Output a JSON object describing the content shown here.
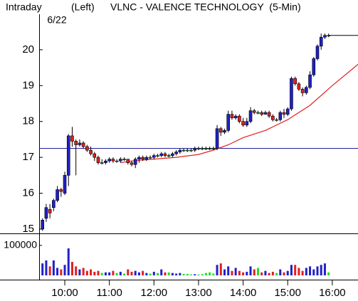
{
  "chart_data": {
    "type": "candlestick",
    "label": "Intraday",
    "date": "6/22",
    "axis_side": "(Left)",
    "title": "VLNC - VALENCE TECHNOLOGY  (5-Min)",
    "x": [
      570,
      575,
      580,
      585,
      590,
      595,
      600,
      605,
      610,
      615,
      620,
      625,
      630,
      635,
      640,
      645,
      650,
      655,
      660,
      665,
      670,
      675,
      680,
      685,
      690,
      695,
      700,
      705,
      710,
      715,
      720,
      725,
      730,
      735,
      740,
      745,
      750,
      755,
      760,
      765,
      770,
      775,
      780,
      785,
      790,
      795,
      800,
      805,
      810,
      815,
      820,
      825,
      830,
      835,
      840,
      845,
      850,
      855,
      860,
      865,
      870,
      875,
      880,
      885,
      890,
      895,
      900,
      905,
      910,
      915,
      920,
      925,
      930,
      935,
      940,
      945,
      950,
      955
    ],
    "open": [
      15.0,
      15.3,
      15.55,
      15.6,
      15.8,
      16.1,
      16.0,
      16.5,
      17.6,
      17.45,
      17.35,
      17.4,
      17.3,
      17.2,
      17.1,
      17.0,
      16.85,
      16.85,
      16.9,
      16.95,
      16.9,
      16.9,
      16.95,
      16.95,
      16.85,
      16.8,
      16.95,
      17.0,
      16.95,
      17.0,
      17.0,
      17.05,
      17.05,
      17.1,
      17.05,
      17.05,
      17.1,
      17.15,
      17.2,
      17.2,
      17.2,
      17.2,
      17.25,
      17.25,
      17.25,
      17.25,
      17.25,
      17.25,
      17.8,
      17.7,
      17.75,
      18.2,
      18.1,
      18.15,
      18.0,
      17.9,
      18.0,
      18.3,
      18.25,
      18.25,
      18.2,
      18.25,
      18.15,
      18.05,
      18.05,
      18.25,
      18.2,
      18.35,
      19.2,
      19.05,
      18.9,
      18.8,
      18.95,
      19.3,
      19.75,
      20.1,
      20.35,
      20.4
    ],
    "high": [
      15.3,
      15.7,
      15.7,
      15.85,
      16.2,
      16.15,
      16.6,
      17.65,
      17.85,
      17.5,
      17.5,
      17.45,
      17.35,
      17.3,
      17.15,
      17.05,
      16.95,
      16.95,
      17.0,
      17.0,
      16.95,
      17.0,
      17.0,
      16.95,
      16.9,
      17.0,
      17.05,
      17.05,
      17.05,
      17.05,
      17.1,
      17.1,
      17.15,
      17.15,
      17.1,
      17.15,
      17.2,
      17.25,
      17.25,
      17.25,
      17.25,
      17.3,
      17.3,
      17.3,
      17.3,
      17.3,
      17.3,
      17.9,
      17.85,
      17.8,
      18.3,
      18.3,
      18.2,
      18.2,
      18.1,
      18.1,
      18.4,
      18.35,
      18.3,
      18.3,
      18.3,
      18.3,
      18.2,
      18.1,
      18.3,
      18.35,
      18.4,
      19.25,
      19.25,
      19.1,
      18.95,
      19.0,
      19.4,
      19.8,
      20.15,
      20.45,
      20.45,
      20.45
    ],
    "low": [
      14.95,
      15.2,
      15.3,
      15.5,
      15.75,
      15.9,
      15.95,
      16.2,
      17.3,
      16.5,
      17.3,
      17.25,
      17.15,
      17.05,
      16.9,
      16.8,
      16.8,
      16.8,
      16.85,
      16.85,
      16.85,
      16.85,
      16.9,
      16.8,
      16.75,
      16.7,
      16.85,
      16.9,
      16.9,
      16.95,
      16.95,
      17.0,
      17.0,
      17.0,
      17.0,
      17.0,
      17.05,
      17.1,
      17.15,
      17.15,
      17.15,
      17.15,
      17.2,
      17.2,
      17.2,
      17.2,
      17.2,
      17.2,
      17.6,
      17.65,
      17.7,
      18.05,
      18.05,
      17.95,
      17.85,
      17.85,
      17.95,
      18.2,
      18.2,
      18.15,
      18.2,
      18.1,
      18.0,
      18.0,
      18.0,
      18.1,
      18.15,
      18.3,
      19.0,
      18.85,
      18.7,
      18.75,
      18.9,
      19.25,
      19.7,
      20.0,
      20.3,
      20.35
    ],
    "close": [
      15.25,
      15.6,
      15.45,
      15.8,
      16.1,
      16.05,
      16.5,
      17.6,
      17.45,
      17.35,
      17.4,
      17.3,
      17.2,
      17.1,
      17.0,
      16.85,
      16.85,
      16.9,
      16.95,
      16.9,
      16.9,
      16.95,
      16.95,
      16.85,
      16.8,
      16.95,
      17.0,
      16.95,
      17.0,
      17.0,
      17.05,
      17.05,
      17.1,
      17.05,
      17.05,
      17.1,
      17.15,
      17.2,
      17.2,
      17.2,
      17.2,
      17.25,
      17.25,
      17.25,
      17.25,
      17.25,
      17.25,
      17.8,
      17.7,
      17.75,
      18.2,
      18.1,
      18.15,
      18.0,
      17.9,
      18.0,
      18.3,
      18.25,
      18.25,
      18.2,
      18.25,
      18.15,
      18.05,
      18.05,
      18.25,
      18.2,
      18.35,
      19.2,
      19.05,
      18.9,
      18.8,
      18.95,
      19.3,
      19.75,
      20.1,
      20.35,
      20.4,
      20.4
    ],
    "volume": [
      40000,
      50000,
      30000,
      50000,
      25000,
      20000,
      35000,
      90000,
      45000,
      30000,
      20000,
      25000,
      15000,
      20000,
      12000,
      15000,
      8000,
      10000,
      10000,
      15000,
      8000,
      12000,
      6000,
      20000,
      12000,
      15000,
      10000,
      15000,
      8000,
      6000,
      12000,
      8000,
      20000,
      10000,
      10000,
      8000,
      6000,
      8000,
      5000,
      5000,
      3000,
      4000,
      3000,
      4000,
      8000,
      10000,
      6000,
      35000,
      40000,
      20000,
      30000,
      15000,
      25000,
      15000,
      10000,
      12000,
      30000,
      20000,
      25000,
      10000,
      15000,
      8000,
      12000,
      8000,
      20000,
      10000,
      15000,
      35000,
      35000,
      25000,
      15000,
      25000,
      30000,
      20000,
      30000,
      35000,
      40000,
      10000
    ],
    "up_color": "#2020c8",
    "down_color": "#e02020",
    "flat_color": "#20e020",
    "ma": {
      "x": [
        675,
        690,
        720,
        750,
        780,
        800,
        820,
        840,
        870,
        900,
        930,
        960,
        995
      ],
      "values": [
        16.85,
        16.9,
        16.95,
        17.0,
        17.08,
        17.2,
        17.35,
        17.55,
        17.75,
        18.05,
        18.45,
        19.0,
        19.6
      ],
      "color": "#e02020"
    },
    "reference": 17.25,
    "reference_color": "#2020a0",
    "xlim": [
      565.5,
      994.6
    ],
    "xticks": [
      {
        "value": 600,
        "label": "10:00"
      },
      {
        "value": 660,
        "label": "11:00"
      },
      {
        "value": 720,
        "label": "12:00"
      },
      {
        "value": 780,
        "label": "13:00"
      },
      {
        "value": 840,
        "label": "14:00"
      },
      {
        "value": 900,
        "label": "15:00"
      },
      {
        "value": 960,
        "label": "16:00"
      }
    ],
    "ylim": [
      14.88,
      20.95
    ],
    "yticks": [
      15,
      16,
      17,
      18,
      19,
      20
    ],
    "volume_ylim": [
      0,
      121000
    ],
    "volume_yticks": [
      100000
    ]
  }
}
